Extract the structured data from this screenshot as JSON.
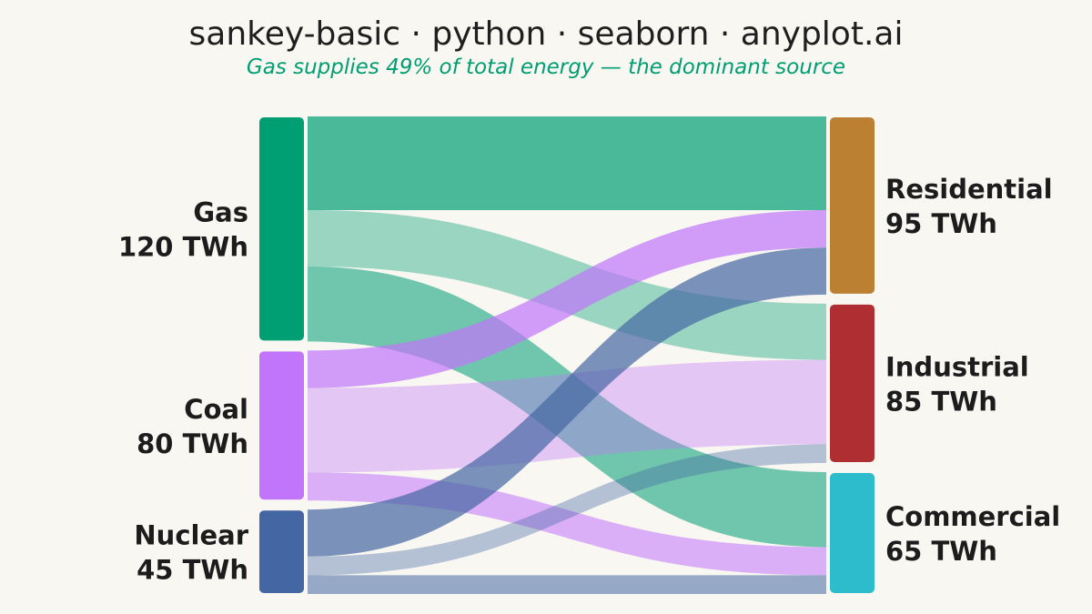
{
  "chart_data": {
    "type": "sankey",
    "title": "sankey-basic · python · seaborn · anyplot.ai",
    "subtitle": "Gas supplies 49% of total energy — the dominant source",
    "unit": "TWh",
    "sources": [
      {
        "name": "Gas",
        "value": 120,
        "label": "120 TWh",
        "color": "#009E73"
      },
      {
        "name": "Coal",
        "value": 80,
        "label": "80 TWh",
        "color": "#C175FB"
      },
      {
        "name": "Nuclear",
        "value": 45,
        "label": "45 TWh",
        "color": "#4467A3"
      }
    ],
    "targets": [
      {
        "name": "Residential",
        "value": 95,
        "label": "95 TWh",
        "color": "#BC8033"
      },
      {
        "name": "Industrial",
        "value": 85,
        "label": "85 TWh",
        "color": "#AE2E32"
      },
      {
        "name": "Commercial",
        "value": 65,
        "label": "65 TWh",
        "color": "#2CBCCC"
      }
    ],
    "flows": [
      {
        "source": "Gas",
        "target": "Residential",
        "value": 50
      },
      {
        "source": "Gas",
        "target": "Industrial",
        "value": 30
      },
      {
        "source": "Gas",
        "target": "Commercial",
        "value": 40
      },
      {
        "source": "Coal",
        "target": "Residential",
        "value": 20
      },
      {
        "source": "Coal",
        "target": "Industrial",
        "value": 45
      },
      {
        "source": "Coal",
        "target": "Commercial",
        "value": 15
      },
      {
        "source": "Nuclear",
        "target": "Residential",
        "value": 25
      },
      {
        "source": "Nuclear",
        "target": "Industrial",
        "value": 10
      },
      {
        "source": "Nuclear",
        "target": "Commercial",
        "value": 10
      }
    ],
    "colors": {
      "accent": "#009E73",
      "background": "#F9F7F1"
    }
  }
}
